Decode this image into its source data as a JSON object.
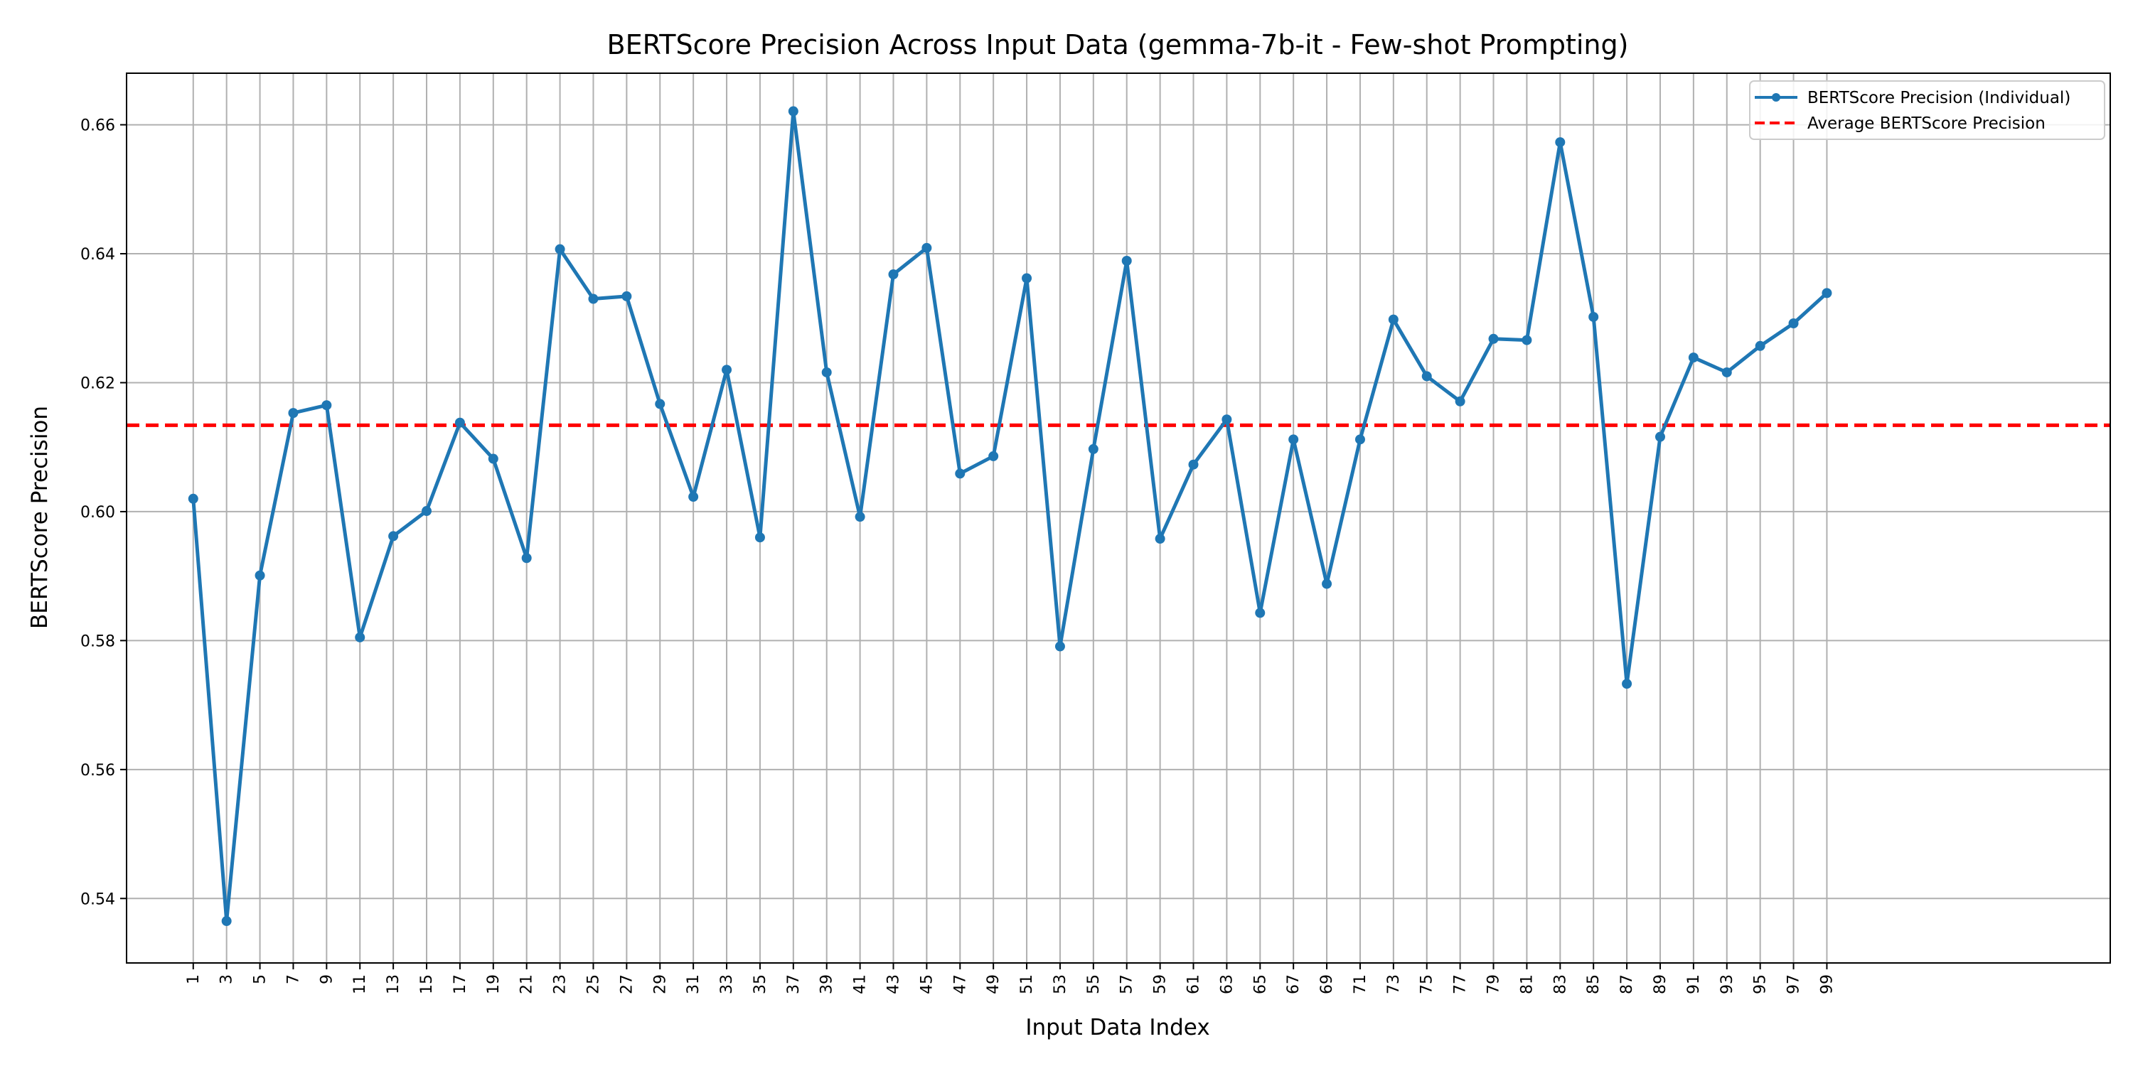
{
  "chart_data": {
    "type": "line",
    "title": "BERTScore Precision Across Input Data (gemma-7b-it - Few-shot Prompting)",
    "xlabel": "Input Data Index",
    "ylabel": "BERTScore Precision",
    "xlim": [
      -3,
      116
    ],
    "ylim": [
      0.53,
      0.668
    ],
    "x_ticks": [
      1,
      3,
      5,
      7,
      9,
      11,
      13,
      15,
      17,
      19,
      21,
      23,
      25,
      27,
      29,
      31,
      33,
      35,
      37,
      39,
      41,
      43,
      45,
      47,
      49,
      51,
      53,
      55,
      57,
      59,
      61,
      63,
      65,
      67,
      69,
      71,
      73,
      75,
      77,
      79,
      81,
      83,
      85,
      87,
      89,
      91,
      93,
      95,
      97,
      99
    ],
    "y_ticks": [
      0.54,
      0.56,
      0.58,
      0.6,
      0.62,
      0.64,
      0.66
    ],
    "y_tick_labels": [
      "0.54",
      "0.56",
      "0.58",
      "0.60",
      "0.62",
      "0.64",
      "0.66"
    ],
    "grid": true,
    "legend_position": "top-right",
    "series": [
      {
        "name": "BERTScore Precision (Individual)",
        "color": "#1f77b4",
        "style": "solid-with-markers",
        "x": [
          1,
          3,
          5,
          7,
          9,
          11,
          13,
          15,
          17,
          19,
          21,
          23,
          25,
          27,
          29,
          31,
          33,
          35,
          37,
          39,
          41,
          43,
          45,
          47,
          49,
          51,
          53,
          55,
          57,
          59,
          61,
          63,
          65,
          67,
          69,
          71,
          73,
          75,
          77,
          79,
          81,
          83,
          85,
          87,
          89,
          91,
          93,
          95,
          97,
          99
        ],
        "values": [
          0.602,
          0.5365,
          0.5901,
          0.6153,
          0.6165,
          0.5805,
          0.5962,
          0.6001,
          0.6138,
          0.6082,
          0.5928,
          0.6407,
          0.633,
          0.6334,
          0.6167,
          0.6023,
          0.622,
          0.596,
          0.6621,
          0.6216,
          0.5992,
          0.6368,
          0.6409,
          0.6059,
          0.6086,
          0.6362,
          0.5791,
          0.6097,
          0.6389,
          0.5958,
          0.6073,
          0.6143,
          0.5843,
          0.6112,
          0.5888,
          0.6112,
          0.6298,
          0.621,
          0.6171,
          0.6268,
          0.6266,
          0.6573,
          0.6302,
          0.5733,
          0.6116,
          0.6239,
          0.6216,
          0.6257,
          0.6292,
          0.6339
        ]
      },
      {
        "name": "Average BERTScore Precision",
        "color": "#ff0000",
        "style": "dashed",
        "value": 0.6134
      }
    ]
  }
}
